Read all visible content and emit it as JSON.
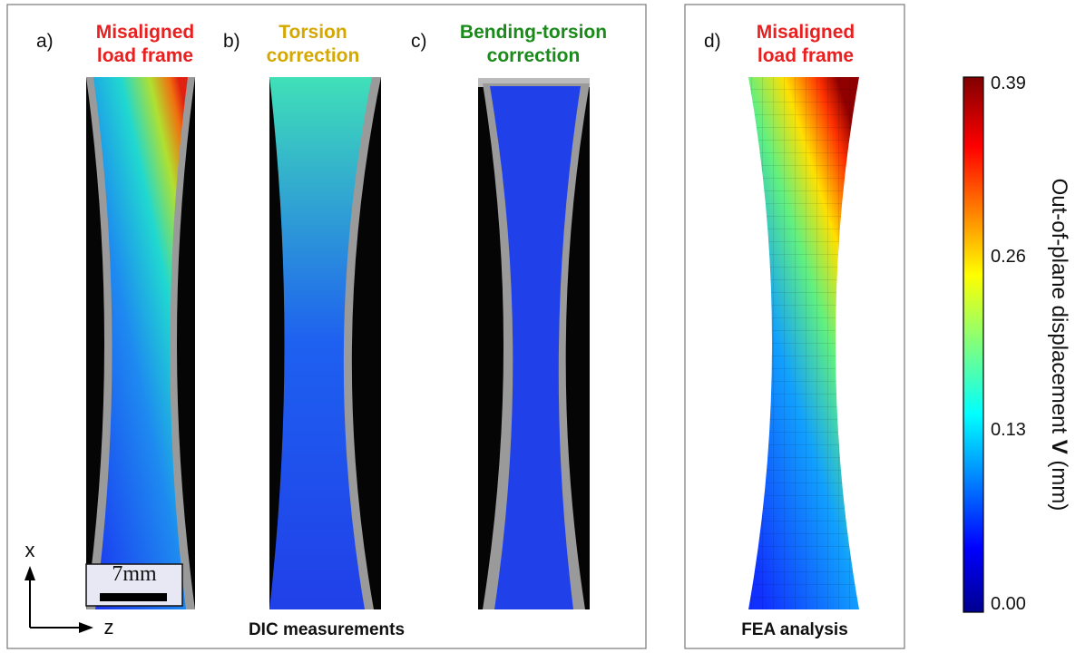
{
  "panels": [
    {
      "tag": "a)",
      "title_lines": [
        "Misaligned",
        "load frame"
      ]
    },
    {
      "tag": "b)",
      "title_lines": [
        "Torsion",
        "correction"
      ]
    },
    {
      "tag": "c)",
      "title_lines": [
        "Bending-torsion",
        "correction"
      ]
    },
    {
      "tag": "d)",
      "title_lines": [
        "Misaligned",
        "load frame"
      ]
    }
  ],
  "scale_bar": "7mm",
  "axes": {
    "x": "x",
    "z": "z"
  },
  "groups": [
    "DIC measurements",
    "FEA analysis"
  ],
  "colorbar": {
    "ticks": [
      "0.39",
      "0.26",
      "0.13",
      "0.00"
    ],
    "label_parts": [
      "Out-of-plane displacement ",
      "V",
      " (mm)"
    ]
  }
}
